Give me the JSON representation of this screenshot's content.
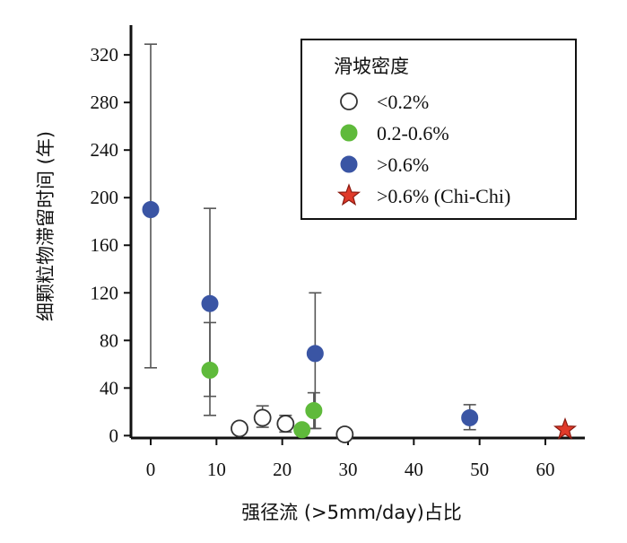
{
  "chart_data": {
    "type": "scatter",
    "xlabel": "强径流 (>5mm/day)占比",
    "ylabel": "细颗粒物滞留时间 (年)",
    "xlim": [
      -3,
      66
    ],
    "ylim": [
      -2,
      345
    ],
    "x_ticks": [
      0,
      10,
      20,
      30,
      40,
      50,
      60
    ],
    "y_ticks": [
      0,
      40,
      80,
      120,
      160,
      200,
      240,
      280,
      320
    ],
    "grid": false,
    "legend": {
      "title": "滑坡密度",
      "position": "top-right",
      "entries": [
        {
          "label": "<0.2%",
          "marker": "circle-open",
          "color": "#ffffff",
          "edge": "#333333"
        },
        {
          "label": "0.2-0.6%",
          "marker": "circle",
          "color": "#5fba3b",
          "edge": "#5fba3b"
        },
        {
          "label": ">0.6%",
          "marker": "circle",
          "color": "#3a55a4",
          "edge": "#3a55a4"
        },
        {
          "label": ">0.6% (Chi-Chi)",
          "marker": "star",
          "color": "#e03a2a",
          "edge": "#8a1a10"
        }
      ]
    },
    "series": [
      {
        "name": "<0.2%",
        "marker": "circle-open",
        "color": "#ffffff",
        "edge": "#333333",
        "points": [
          {
            "x": 13.5,
            "y": 6,
            "err_lo": 4,
            "err_hi": 4
          },
          {
            "x": 17,
            "y": 15,
            "err_lo": 8,
            "err_hi": 10
          },
          {
            "x": 20.5,
            "y": 10,
            "err_lo": 7,
            "err_hi": 7
          },
          {
            "x": 29.5,
            "y": 1,
            "err_lo": 0,
            "err_hi": 0
          }
        ]
      },
      {
        "name": "0.2-0.6%",
        "marker": "circle",
        "color": "#5fba3b",
        "edge": "#5fba3b",
        "points": [
          {
            "x": 9,
            "y": 55,
            "err_lo": 22,
            "err_hi": 40
          },
          {
            "x": 23,
            "y": 5,
            "err_lo": 0,
            "err_hi": 0
          },
          {
            "x": 24.8,
            "y": 21,
            "err_lo": 15,
            "err_hi": 15
          }
        ]
      },
      {
        "name": ">0.6%",
        "marker": "circle",
        "color": "#3a55a4",
        "edge": "#3a55a4",
        "points": [
          {
            "x": 0,
            "y": 190,
            "err_lo": 133,
            "err_hi": 139
          },
          {
            "x": 9,
            "y": 111,
            "err_lo": 94,
            "err_hi": 80
          },
          {
            "x": 25,
            "y": 69,
            "err_lo": 63,
            "err_hi": 51
          },
          {
            "x": 48.5,
            "y": 15,
            "err_lo": 10,
            "err_hi": 11
          }
        ]
      },
      {
        "name": ">0.6% (Chi-Chi)",
        "marker": "star",
        "color": "#e03a2a",
        "edge": "#8a1a10",
        "points": [
          {
            "x": 63,
            "y": 5,
            "err_lo": 0,
            "err_hi": 0
          }
        ]
      }
    ]
  }
}
